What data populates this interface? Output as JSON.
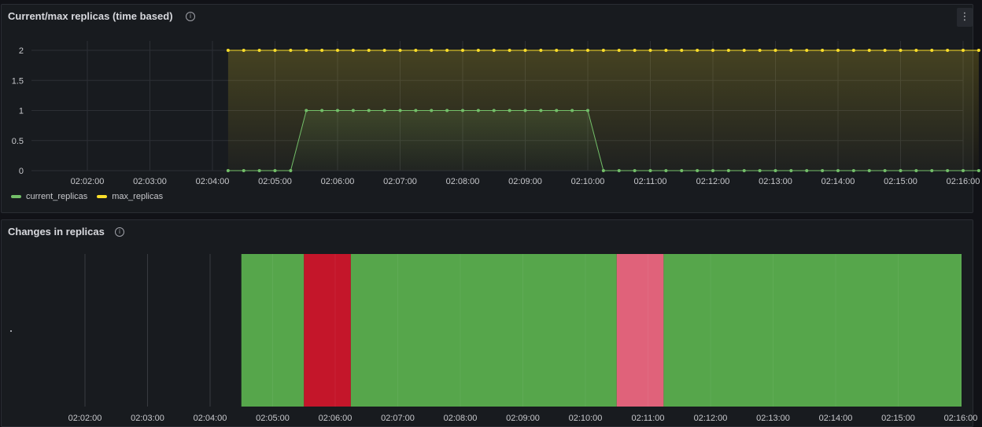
{
  "panel1": {
    "title": "Current/max replicas (time based)",
    "info_icon": "info-circle-icon",
    "menu_icon": "kebab-menu-icon",
    "menu_glyph": "⋮"
  },
  "panel2": {
    "title": "Changes in replicas",
    "info_icon": "info-circle-icon"
  },
  "colors": {
    "current": "#73bf69",
    "max": "#fade2a",
    "increase": "#c4162a",
    "decrease": "#e0627a",
    "steady": "#56a64b"
  },
  "chart_data": [
    {
      "type": "line",
      "title": "Current/max replicas (time based)",
      "x_ticks": [
        "02:02:00",
        "02:03:00",
        "02:04:00",
        "02:05:00",
        "02:06:00",
        "02:07:00",
        "02:08:00",
        "02:09:00",
        "02:10:00",
        "02:11:00",
        "02:12:00",
        "02:13:00",
        "02:14:00",
        "02:15:00",
        "02:16:00"
      ],
      "y_ticks": [
        "0",
        "0.5",
        "1",
        "1.5",
        "2"
      ],
      "ylim": [
        0,
        2
      ],
      "x_minutes_range": [
        "02:01:10",
        "02:16:20"
      ],
      "series": [
        {
          "name": "current_replicas",
          "color": "#73bf69",
          "sample_interval_s": 15,
          "start": "02:04:15",
          "values": [
            0,
            0,
            0,
            0,
            0,
            1,
            1,
            1,
            1,
            1,
            1,
            1,
            1,
            1,
            1,
            1,
            1,
            1,
            1,
            1,
            1,
            1,
            1,
            1,
            0,
            0,
            0,
            0,
            0,
            0,
            0,
            0,
            0,
            0,
            0,
            0,
            0,
            0,
            0,
            0,
            0,
            0,
            0,
            0,
            0,
            0,
            0,
            0,
            0
          ]
        },
        {
          "name": "max_replicas",
          "color": "#fade2a",
          "sample_interval_s": 15,
          "start": "02:04:15",
          "values": [
            2,
            2,
            2,
            2,
            2,
            2,
            2,
            2,
            2,
            2,
            2,
            2,
            2,
            2,
            2,
            2,
            2,
            2,
            2,
            2,
            2,
            2,
            2,
            2,
            2,
            2,
            2,
            2,
            2,
            2,
            2,
            2,
            2,
            2,
            2,
            2,
            2,
            2,
            2,
            2,
            2,
            2,
            2,
            2,
            2,
            2,
            2,
            2,
            2
          ]
        }
      ],
      "legend": "bottom-left"
    },
    {
      "type": "heatmap",
      "title": "Changes in replicas",
      "x_ticks": [
        "02:02:00",
        "02:03:00",
        "02:04:00",
        "02:05:00",
        "02:06:00",
        "02:07:00",
        "02:08:00",
        "02:09:00",
        "02:10:00",
        "02:11:00",
        "02:12:00",
        "02:13:00",
        "02:14:00",
        "02:15:00",
        "02:16:00"
      ],
      "segments": [
        {
          "start": "02:04:30",
          "end": "02:05:30",
          "state": "steady",
          "color": "#56a64b"
        },
        {
          "start": "02:05:30",
          "end": "02:06:15",
          "state": "increase",
          "color": "#c4162a"
        },
        {
          "start": "02:06:15",
          "end": "02:10:30",
          "state": "steady",
          "color": "#56a64b"
        },
        {
          "start": "02:10:30",
          "end": "02:11:15",
          "state": "decrease",
          "color": "#e0627a"
        },
        {
          "start": "02:11:15",
          "end": "02:16:20",
          "state": "steady",
          "color": "#56a64b"
        }
      ]
    }
  ]
}
